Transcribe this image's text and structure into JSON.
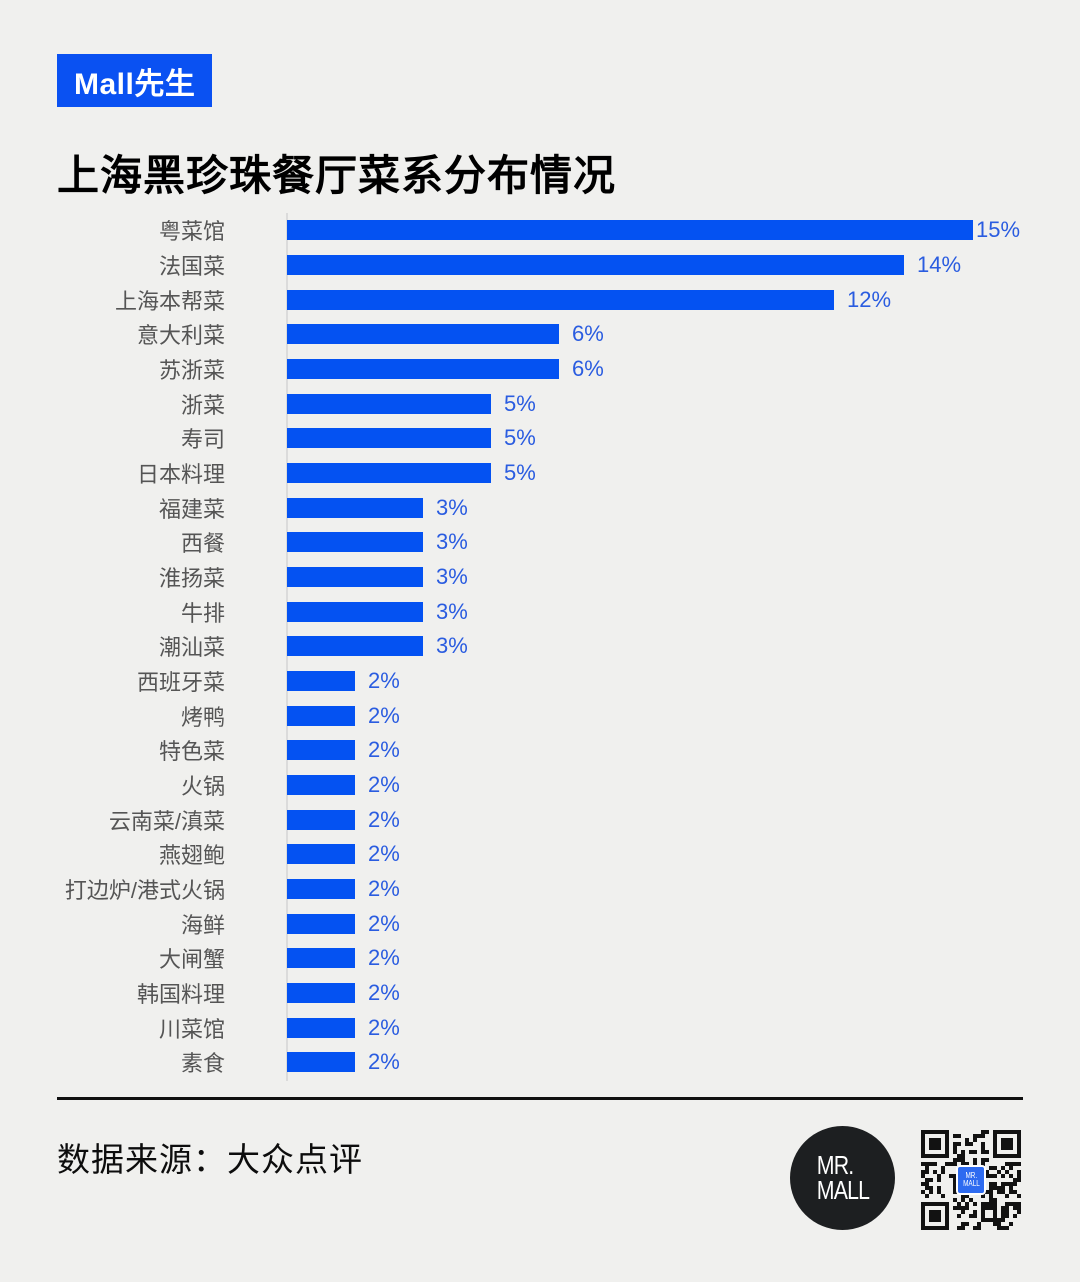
{
  "theme": {
    "background": "#f0f0ee",
    "accent_blue": "#0a51f2",
    "bar_blue": "#0452f2",
    "value_label_blue": "#2a5ce0",
    "category_text": "#555555"
  },
  "header": {
    "badge": "Mall先生",
    "title": "上海黑珍珠餐厅菜系分布情况"
  },
  "chart_data": {
    "type": "bar",
    "orientation": "horizontal",
    "title": "上海黑珍珠餐厅菜系分布情况",
    "categories": [
      "粤菜馆",
      "法国菜",
      "上海本帮菜",
      "意大利菜",
      "苏浙菜",
      "浙菜",
      "寿司",
      "日本料理",
      "福建菜",
      "西餐",
      "淮扬菜",
      "牛排",
      "潮汕菜",
      "西班牙菜",
      "烤鸭",
      "特色菜",
      "火锅",
      "云南菜/滇菜",
      "燕翅鲍",
      "打边炉/港式火锅",
      "海鲜",
      "大闸蟹",
      "韩国料理",
      "川菜馆",
      "素食"
    ],
    "value_labels": [
      "15%",
      "14%",
      "12%",
      "6%",
      "6%",
      "5%",
      "5%",
      "5%",
      "3%",
      "3%",
      "3%",
      "3%",
      "3%",
      "2%",
      "2%",
      "2%",
      "2%",
      "2%",
      "2%",
      "2%",
      "2%",
      "2%",
      "2%",
      "2%",
      "2%"
    ],
    "values_pct": [
      15,
      14,
      12,
      6,
      6,
      5,
      5,
      5,
      3,
      3,
      3,
      3,
      3,
      2,
      2,
      2,
      2,
      2,
      2,
      2,
      2,
      2,
      2,
      2,
      2
    ],
    "bar_lengths_pct": [
      15.1,
      13.6,
      12.05,
      6,
      6,
      4.5,
      4.5,
      4.5,
      3,
      3,
      3,
      3,
      3,
      1.5,
      1.5,
      1.5,
      1.5,
      1.5,
      1.5,
      1.5,
      1.5,
      1.5,
      1.5,
      1.5,
      1.5
    ],
    "xlim": [
      0,
      15.5
    ],
    "xlabel": "",
    "ylabel": "",
    "grid": "off",
    "legend": "none",
    "bar_color": "#0452f2",
    "value_label_color": "#2a5ce0"
  },
  "footer": {
    "source": "数据来源：大众点评",
    "logo_line1": "MR.",
    "logo_line2": "MALL",
    "qr_badge_line1": "MR.",
    "qr_badge_line2": "MALL"
  }
}
